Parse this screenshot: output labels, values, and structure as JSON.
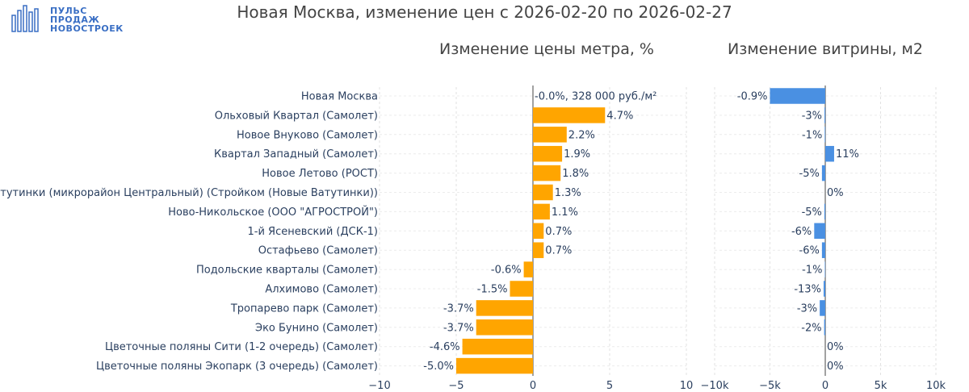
{
  "logo": {
    "lines": [
      "ПУЛЬС",
      "ПРОДАЖ",
      "НОВОСТРОЕК"
    ],
    "color": "#3a6fc4"
  },
  "title": "Новая Москва, изменение цен с 2026-02-20 по 2026-02-27",
  "chart_data": [
    {
      "type": "bar",
      "orientation": "horizontal",
      "title": "Изменение цены метра, %",
      "color": "#ffa500",
      "xlim": [
        -10,
        10
      ],
      "xticks": [
        -10,
        -5,
        0,
        5,
        10
      ],
      "xtick_labels": [
        "−10",
        "−5",
        "0",
        "5",
        "10"
      ],
      "grid": true,
      "categories": [
        "Новая Москва",
        "Ольховый Квартал (Самолет)",
        "Новое Внуково (Самолет)",
        "Квартал Западный (Самолет)",
        "Новое Летово (РОСТ)",
        "Новые Ватутинки (микрорайон Центральный) (Стройком (Новые Ватутинки))",
        "Ново-Никольское (ООО \"АГРОСТРОЙ\")",
        "1-й Ясеневский (ДСК-1)",
        "Остафьево (Самолет)",
        "Подольские кварталы (Самолет)",
        "Алхимово (Самолет)",
        "Тропарево парк (Самолет)",
        "Эко Бунино (Самолет)",
        "Цветочные поляны Сити (1-2 очередь) (Самолет)",
        "Цветочные поляны Экопарк (3 очередь) (Самолет)"
      ],
      "values": [
        0.0,
        4.7,
        2.2,
        1.9,
        1.8,
        1.3,
        1.1,
        0.7,
        0.7,
        -0.6,
        -1.5,
        -3.7,
        -3.7,
        -4.6,
        -5.0
      ],
      "labels": [
        "-0.0%, 328 000 руб./м²",
        "4.7%",
        "2.2%",
        "1.9%",
        "1.8%",
        "1.3%",
        "1.1%",
        "0.7%",
        "0.7%",
        "-0.6%",
        "-1.5%",
        "-3.7%",
        "-3.7%",
        "-4.6%",
        "-5.0%"
      ]
    },
    {
      "type": "bar",
      "orientation": "horizontal",
      "title": "Изменение витрины, м2",
      "color": "#4a90e2",
      "xlim": [
        -10000,
        10000
      ],
      "xticks": [
        -10000,
        -5000,
        0,
        5000,
        10000
      ],
      "xtick_labels": [
        "−10k",
        "−5k",
        "0",
        "5k",
        "10k"
      ],
      "grid": true,
      "values": [
        -5000,
        -70,
        -50,
        800,
        -300,
        0,
        -80,
        -1000,
        -300,
        -40,
        -150,
        -500,
        -100,
        0,
        0
      ],
      "labels": [
        "-0.9%",
        "-3%",
        "-1%",
        "11%",
        "-5%",
        "0%",
        "-5%",
        "-6%",
        "-6%",
        "-1%",
        "-13%",
        "-3%",
        "-2%",
        "0%",
        "0%"
      ]
    }
  ]
}
